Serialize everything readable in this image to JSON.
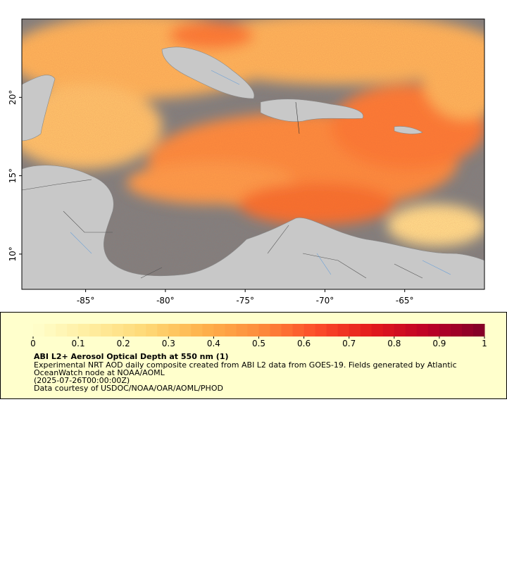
{
  "map": {
    "xlim": [
      -89,
      -60
    ],
    "ylim": [
      7.75,
      25
    ],
    "xticks": [
      {
        "value": -85,
        "label": "-85°"
      },
      {
        "value": -80,
        "label": "-80°"
      },
      {
        "value": -75,
        "label": "-75°"
      },
      {
        "value": -70,
        "label": "-70°"
      },
      {
        "value": -65,
        "label": "-65°"
      }
    ],
    "yticks": [
      {
        "value": 20,
        "label": "20°"
      },
      {
        "value": 15,
        "label": "15°"
      },
      {
        "value": 10,
        "label": "10°"
      }
    ]
  },
  "legend": {
    "range": [
      0,
      1
    ],
    "ticks": [
      0,
      0.1,
      0.2,
      0.3,
      0.4,
      0.5,
      0.6,
      0.7,
      0.8,
      0.9,
      1
    ],
    "colors": [
      "#ffffcc",
      "#ffeda0",
      "#fed976",
      "#feb24c",
      "#fd8d3c",
      "#fc4e2a",
      "#e31a1c",
      "#bd0026",
      "#800026"
    ],
    "title": "ABI L2+ Aerosol Optical Depth at 550 nm (1)",
    "lines": [
      "Experimental NRT AOD daily composite created from ABI L2 data from GOES-19. Fields generated by Atlantic",
      "OceanWatch node at NOAA/AOML",
      "(2025-07-26T00:00:00Z)",
      "Data courtesy of USDOC/NOAA/OAR/AOML/PHOD"
    ]
  }
}
